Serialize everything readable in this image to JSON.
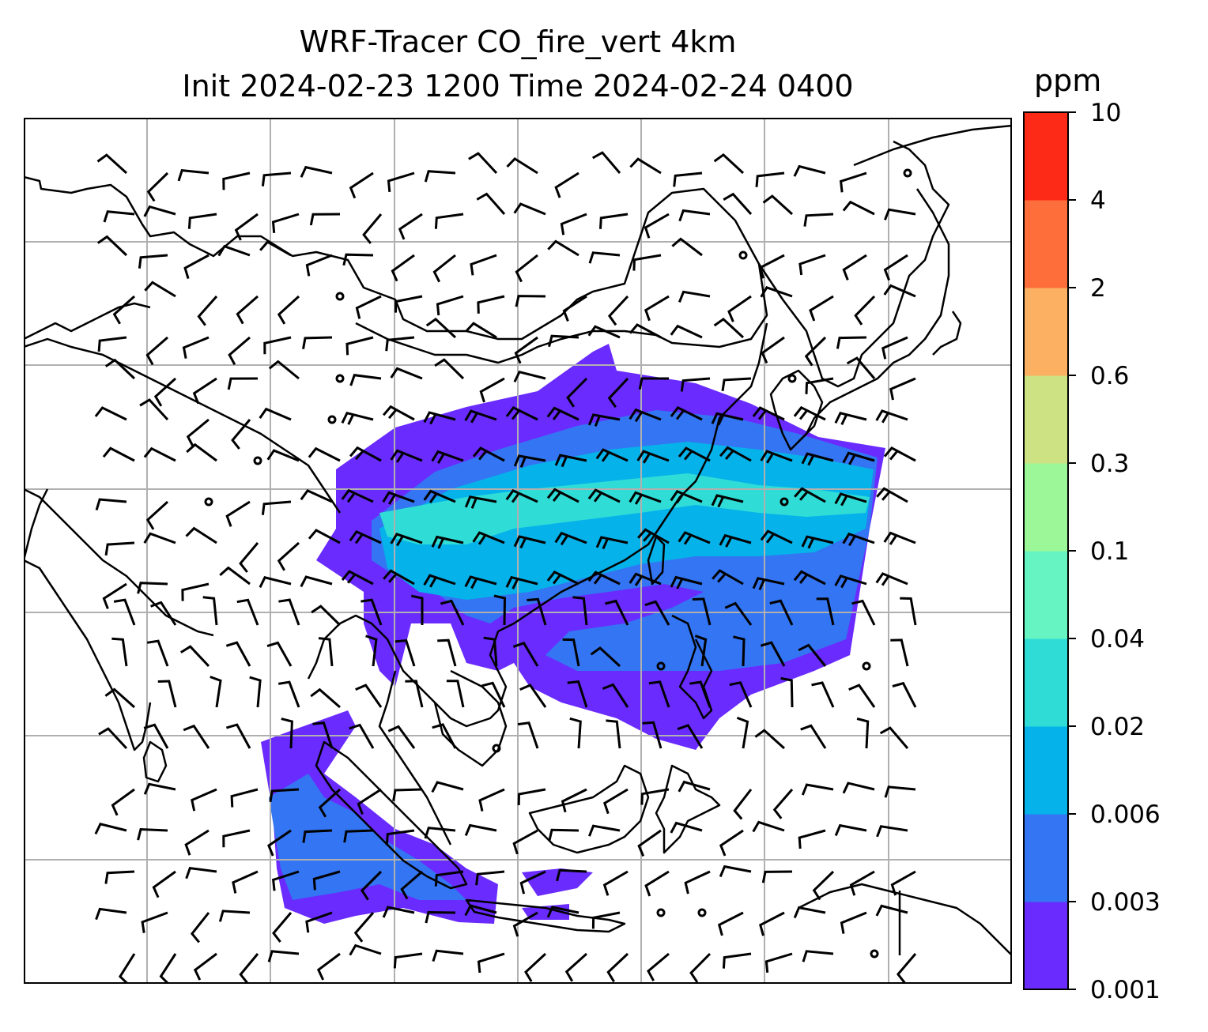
{
  "title_line1": "WRF-Tracer CO_fire_vert 4km",
  "title_line2": "Init 2024-02-23 1200 Time 2024-02-24 0400",
  "colorbar": {
    "unit": "ppm",
    "levels": [
      "0.001",
      "0.003",
      "0.006",
      "0.02",
      "0.04",
      "0.1",
      "0.3",
      "0.6",
      "2",
      "4",
      "10"
    ],
    "colors": [
      "#6a2bff",
      "#3375f2",
      "#06b2ea",
      "#2fdcd6",
      "#66f5c2",
      "#9bf798",
      "#cde283",
      "#fbb062",
      "#fd6e3b",
      "#fe2a18"
    ]
  },
  "map": {
    "fill_colors": {
      "level1": "#6a2bff",
      "level2": "#3375f2",
      "level3": "#06b2ea",
      "level4": "#2fdcd6"
    },
    "grid_color": "#b0b0b0",
    "coast_color": "#000000"
  }
}
